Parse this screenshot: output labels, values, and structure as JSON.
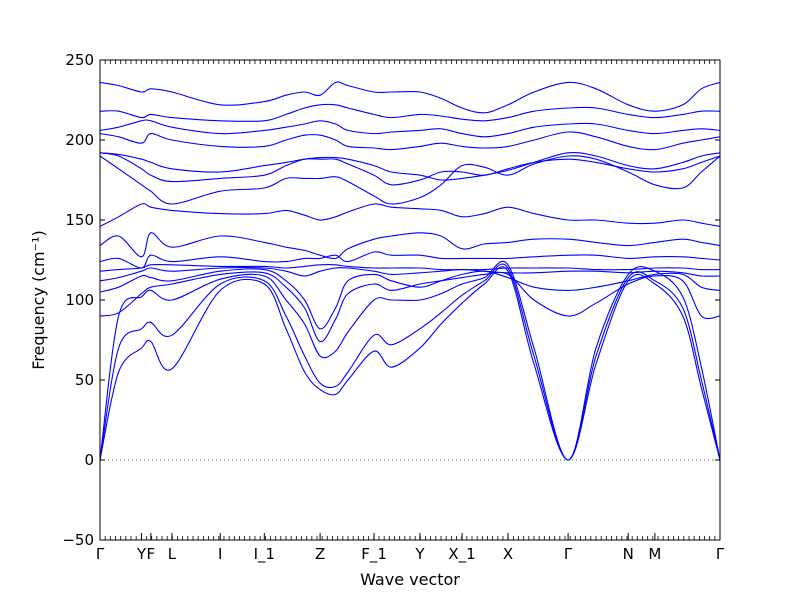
{
  "chart_data": {
    "type": "line",
    "title": "",
    "xlabel": "Wave vector",
    "ylabel": "Frequency (cm⁻¹)",
    "ylim": [
      -50,
      250
    ],
    "yticks": [
      -50,
      0,
      50,
      100,
      150,
      200,
      250
    ],
    "ytick_labels": [
      "−50",
      "0",
      "50",
      "100",
      "150",
      "200",
      "250"
    ],
    "grid": false,
    "legend": "none",
    "line_color": "#0000ff",
    "zero_line_color": "#555555",
    "xlim": [
      0,
      100
    ],
    "high_symmetry_points": [
      {
        "label": "Γ",
        "x": 0
      },
      {
        "label": "Y",
        "x": 6.7
      },
      {
        "label": "F",
        "x": 8.2
      },
      {
        "label": "L",
        "x": 11.6
      },
      {
        "label": "I",
        "x": 19.4
      },
      {
        "label": "I_1",
        "x": 26.5
      },
      {
        "label": "Z",
        "x": 35.5
      },
      {
        "label": "F_1",
        "x": 44.2
      },
      {
        "label": "Y",
        "x": 51.6
      },
      {
        "label": "X_1",
        "x": 58.4
      },
      {
        "label": "X",
        "x": 65.8
      },
      {
        "label": "Γ",
        "x": 75.5
      },
      {
        "label": "N",
        "x": 85.2
      },
      {
        "label": "M",
        "x": 89.5
      },
      {
        "label": "Γ",
        "x": 100
      }
    ],
    "series": [
      {
        "x": [
          0,
          3,
          6.7,
          8.2,
          11.6,
          19.4,
          26.5,
          30,
          33,
          35.5,
          38,
          40,
          44.2,
          47,
          51.6,
          55,
          58.4,
          62,
          65.8,
          70,
          75.5,
          80,
          85.2,
          89.5,
          94,
          97,
          100
        ],
        "y": [
          0,
          55,
          70,
          74,
          57,
          106,
          110,
          82,
          55,
          44,
          41,
          50,
          68,
          58,
          70,
          85,
          98,
          110,
          118,
          60,
          0,
          60,
          112,
          110,
          90,
          45,
          0
        ]
      },
      {
        "x": [
          0,
          3,
          6.7,
          8.2,
          11.6,
          19.4,
          26.5,
          30,
          33,
          35.5,
          38,
          40,
          44.2,
          47,
          51.6,
          55,
          58.4,
          62,
          65.8,
          70,
          75.5,
          80,
          85.2,
          89.5,
          94,
          97,
          100
        ],
        "y": [
          0,
          70,
          82,
          86,
          78,
          110,
          112,
          90,
          65,
          48,
          46,
          55,
          78,
          72,
          82,
          92,
          103,
          112,
          120,
          65,
          0,
          65,
          114,
          112,
          95,
          50,
          0
        ]
      },
      {
        "x": [
          0,
          3,
          6.7,
          8.2,
          11.6,
          19.4,
          26.5,
          30,
          33,
          35.5,
          38,
          40,
          44.2,
          47,
          51.6,
          55,
          58.4,
          62,
          65.8,
          70,
          75.5,
          80,
          85.2,
          89.5,
          94,
          97,
          100
        ],
        "y": [
          0,
          90,
          102,
          106,
          100,
          113,
          115,
          100,
          85,
          65,
          68,
          80,
          100,
          100,
          100,
          104,
          110,
          114,
          122,
          70,
          0,
          70,
          116,
          118,
          102,
          58,
          0
        ]
      },
      {
        "x": [
          0,
          3,
          6.7,
          8.2,
          11.6,
          19.4,
          26.5,
          30,
          33,
          35.5,
          38,
          40,
          44.2,
          47,
          51.6,
          55,
          58.4,
          62,
          65.8,
          70,
          75.5,
          80,
          85.2,
          89.5,
          94,
          97,
          100
        ],
        "y": [
          90,
          92,
          104,
          108,
          110,
          116,
          117,
          108,
          95,
          74,
          88,
          104,
          110,
          106,
          110,
          112,
          114,
          116,
          116,
          100,
          90,
          98,
          110,
          115,
          112,
          90,
          90
        ]
      },
      {
        "x": [
          0,
          3,
          6.7,
          8.2,
          11.6,
          19.4,
          26.5,
          30,
          33,
          35.5,
          38,
          40,
          44.2,
          47,
          51.6,
          55,
          58.4,
          62,
          65.8,
          70,
          75.5,
          80,
          85.2,
          89.5,
          94,
          97,
          100
        ],
        "y": [
          105,
          108,
          115,
          114,
          112,
          118,
          119,
          112,
          100,
          82,
          95,
          112,
          116,
          112,
          108,
          112,
          116,
          118,
          114,
          108,
          106,
          108,
          112,
          116,
          116,
          108,
          106
        ]
      },
      {
        "x": [
          0,
          3,
          6.7,
          8.2,
          11.6,
          19.4,
          26.5,
          30,
          33,
          35.5,
          38,
          40,
          44.2,
          47,
          51.6,
          55,
          58.4,
          62,
          65.8,
          70,
          75.5,
          80,
          85.2,
          89.5,
          94,
          97,
          100
        ],
        "y": [
          112,
          114,
          118,
          120,
          118,
          120,
          120,
          118,
          115,
          118,
          120,
          120,
          118,
          116,
          117,
          118,
          119,
          118,
          117,
          117,
          118,
          118,
          117,
          118,
          117,
          115,
          115
        ]
      },
      {
        "x": [
          0,
          3,
          6.7,
          8.2,
          11.6,
          19.4,
          26.5,
          30,
          33,
          35.5,
          38,
          40,
          44.2,
          47,
          51.6,
          55,
          58.4,
          62,
          65.8,
          70,
          75.5,
          80,
          85.2,
          89.5,
          94,
          97,
          100
        ],
        "y": [
          118,
          119,
          120,
          122,
          122,
          121,
          121,
          120,
          121,
          122,
          122,
          121,
          120,
          120,
          120,
          119,
          119,
          119,
          120,
          120,
          120,
          119,
          119,
          120,
          120,
          119,
          119
        ]
      },
      {
        "x": [
          0,
          3,
          6.7,
          8.2,
          11.6,
          19.4,
          26.5,
          30,
          33,
          35.5,
          38,
          40,
          44.2,
          47,
          51.6,
          55,
          58.4,
          62,
          65.8,
          70,
          75.5,
          80,
          85.2,
          89.5,
          94,
          97,
          100
        ],
        "y": [
          124,
          126,
          120,
          128,
          124,
          127,
          124,
          124,
          126,
          126,
          128,
          124,
          130,
          128,
          128,
          126,
          126,
          126,
          126,
          127,
          128,
          128,
          126,
          127,
          127,
          126,
          125
        ]
      },
      {
        "x": [
          0,
          3,
          6.7,
          8.2,
          11.6,
          19.4,
          26.5,
          30,
          33,
          35.5,
          38,
          40,
          44.2,
          47,
          51.6,
          55,
          58.4,
          62,
          65.8,
          70,
          75.5,
          80,
          85.2,
          89.5,
          94,
          97,
          100
        ],
        "y": [
          134,
          140,
          127,
          142,
          133,
          140,
          136,
          133,
          131,
          128,
          126,
          132,
          138,
          140,
          142,
          140,
          132,
          135,
          136,
          138,
          138,
          136,
          134,
          136,
          138,
          136,
          134
        ]
      },
      {
        "x": [
          0,
          3,
          6.7,
          8.2,
          11.6,
          19.4,
          26.5,
          30,
          33,
          35.5,
          38,
          40,
          44.2,
          47,
          51.6,
          55,
          58.4,
          62,
          65.8,
          70,
          75.5,
          80,
          85.2,
          89.5,
          94,
          97,
          100
        ],
        "y": [
          146,
          152,
          160,
          158,
          156,
          154,
          154,
          156,
          153,
          150,
          152,
          155,
          160,
          158,
          157,
          156,
          152,
          154,
          158,
          154,
          150,
          150,
          148,
          148,
          150,
          148,
          146
        ]
      },
      {
        "x": [
          0,
          3,
          6.7,
          8.2,
          11.6,
          19.4,
          26.5,
          30,
          33,
          35.5,
          38,
          40,
          44.2,
          47,
          51.6,
          55,
          58.4,
          62,
          65.8,
          70,
          75.5,
          80,
          85.2,
          89.5,
          94,
          97,
          100
        ],
        "y": [
          190,
          182,
          172,
          168,
          160,
          168,
          170,
          176,
          176,
          176,
          177,
          174,
          165,
          160,
          164,
          172,
          184,
          183,
          178,
          185,
          190,
          188,
          180,
          172,
          170,
          180,
          190
        ]
      },
      {
        "x": [
          0,
          3,
          6.7,
          8.2,
          11.6,
          19.4,
          26.5,
          30,
          33,
          35.5,
          38,
          40,
          44.2,
          47,
          51.6,
          55,
          58.4,
          62,
          65.8,
          70,
          75.5,
          80,
          85.2,
          89.5,
          94,
          97,
          100
        ],
        "y": [
          192,
          190,
          182,
          178,
          174,
          176,
          178,
          184,
          188,
          188,
          188,
          185,
          178,
          172,
          175,
          180,
          180,
          178,
          182,
          186,
          188,
          186,
          182,
          180,
          182,
          186,
          190
        ]
      },
      {
        "x": [
          0,
          3,
          6.7,
          8.2,
          11.6,
          19.4,
          26.5,
          30,
          33,
          35.5,
          38,
          40,
          44.2,
          47,
          51.6,
          55,
          58.4,
          62,
          65.8,
          70,
          75.5,
          80,
          85.2,
          89.5,
          94,
          97,
          100
        ],
        "y": [
          192,
          191,
          188,
          186,
          182,
          180,
          184,
          186,
          188,
          189,
          189,
          188,
          184,
          180,
          178,
          175,
          176,
          178,
          181,
          186,
          192,
          190,
          184,
          182,
          186,
          190,
          192
        ]
      },
      {
        "x": [
          0,
          3,
          6.7,
          8.2,
          11.6,
          19.4,
          26.5,
          30,
          33,
          35.5,
          38,
          40,
          44.2,
          47,
          51.6,
          55,
          58.4,
          62,
          65.8,
          70,
          75.5,
          80,
          85.2,
          89.5,
          94,
          97,
          100
        ],
        "y": [
          204,
          202,
          198,
          204,
          200,
          196,
          196,
          200,
          203,
          203,
          200,
          196,
          195,
          194,
          196,
          198,
          196,
          195,
          196,
          200,
          205,
          202,
          196,
          194,
          198,
          200,
          202
        ]
      },
      {
        "x": [
          0,
          3,
          6.7,
          8.2,
          11.6,
          19.4,
          26.5,
          30,
          33,
          35.5,
          38,
          40,
          44.2,
          47,
          51.6,
          55,
          58.4,
          62,
          65.8,
          70,
          75.5,
          80,
          85.2,
          89.5,
          94,
          97,
          100
        ],
        "y": [
          206,
          208,
          212,
          212,
          208,
          204,
          206,
          208,
          210,
          212,
          210,
          206,
          204,
          205,
          206,
          207,
          204,
          202,
          204,
          208,
          210,
          210,
          206,
          204,
          206,
          207,
          206
        ]
      },
      {
        "x": [
          0,
          3,
          6.7,
          8.2,
          11.6,
          19.4,
          26.5,
          30,
          33,
          35.5,
          38,
          40,
          44.2,
          47,
          51.6,
          55,
          58.4,
          62,
          65.8,
          70,
          75.5,
          80,
          85.2,
          89.5,
          94,
          97,
          100
        ],
        "y": [
          218,
          218,
          214,
          216,
          214,
          212,
          212,
          216,
          220,
          222,
          222,
          220,
          216,
          214,
          216,
          215,
          213,
          212,
          214,
          218,
          220,
          220,
          216,
          214,
          216,
          218,
          218
        ]
      },
      {
        "x": [
          0,
          3,
          6.7,
          8.2,
          11.6,
          19.4,
          26.5,
          30,
          33,
          35.5,
          38,
          40,
          44.2,
          47,
          51.6,
          55,
          58.4,
          62,
          65.8,
          70,
          75.5,
          80,
          85.2,
          89.5,
          94,
          97,
          100
        ],
        "y": [
          236,
          234,
          230,
          232,
          230,
          222,
          224,
          228,
          230,
          228,
          236,
          234,
          230,
          230,
          230,
          226,
          220,
          217,
          222,
          230,
          236,
          232,
          222,
          218,
          222,
          232,
          236
        ]
      }
    ]
  }
}
